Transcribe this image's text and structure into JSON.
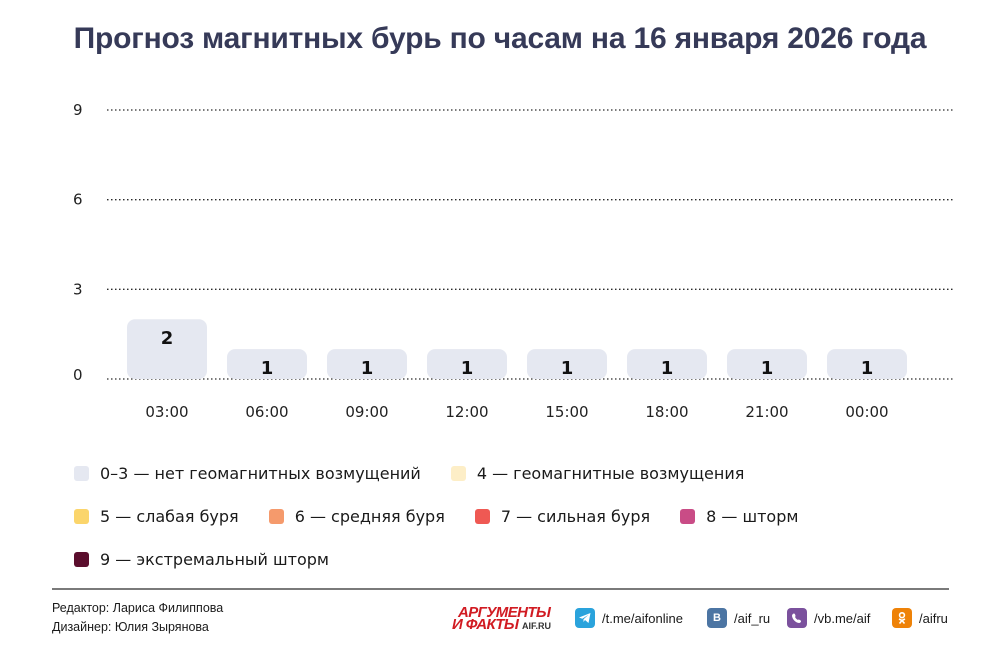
{
  "title": "Прогноз магнитных бурь по часам на 16 января 2026 года",
  "chart_data": {
    "type": "bar",
    "title": "Прогноз магнитных бурь по часам на 16 января 2026 года",
    "categories": [
      "03:00",
      "06:00",
      "09:00",
      "12:00",
      "15:00",
      "18:00",
      "21:00",
      "00:00"
    ],
    "values": [
      2,
      1,
      1,
      1,
      1,
      1,
      1,
      1
    ],
    "yticks": [
      "0",
      "3",
      "6",
      "9"
    ],
    "ylim": [
      0,
      9
    ],
    "grid": "dotted horizontal",
    "bar_color": "#e5e8f1",
    "legend_position": "bottom"
  },
  "legend": {
    "items": [
      {
        "label": "0–3 — нет геомагнитных возмущений",
        "color": "#e5e8f1"
      },
      {
        "label": "4 — геомагнитные возмущения",
        "color": "#fdeec7"
      },
      {
        "label": "5 — слабая буря",
        "color": "#fbd56b"
      },
      {
        "label": "6 — средняя буря",
        "color": "#f59a6c"
      },
      {
        "label": "7 — сильная буря",
        "color": "#ef5953"
      },
      {
        "label": "8 — шторм",
        "color": "#c94c86"
      },
      {
        "label": "9 — экстремальный шторм",
        "color": "#5b0e2d"
      }
    ]
  },
  "footer": {
    "editor": "Редактор: Лариса Филиппова",
    "designer": "Дизайнер: Юлия Зырянова",
    "logo_line1": "АРГУМЕНТЫ",
    "logo_line2": "И ФАКТЫ",
    "logo_site": "AIF.RU",
    "socials": [
      {
        "label": "/t.me/aifonline",
        "icon": "telegram-icon",
        "color": "#2aa3dc"
      },
      {
        "label": "/aif_ru",
        "icon": "vk-icon",
        "color": "#4c75a3"
      },
      {
        "label": "/vb.me/aif",
        "icon": "viber-icon",
        "color": "#7b519d"
      },
      {
        "label": "/aifru",
        "icon": "odnoklassniki-icon",
        "color": "#ee8208"
      }
    ]
  }
}
